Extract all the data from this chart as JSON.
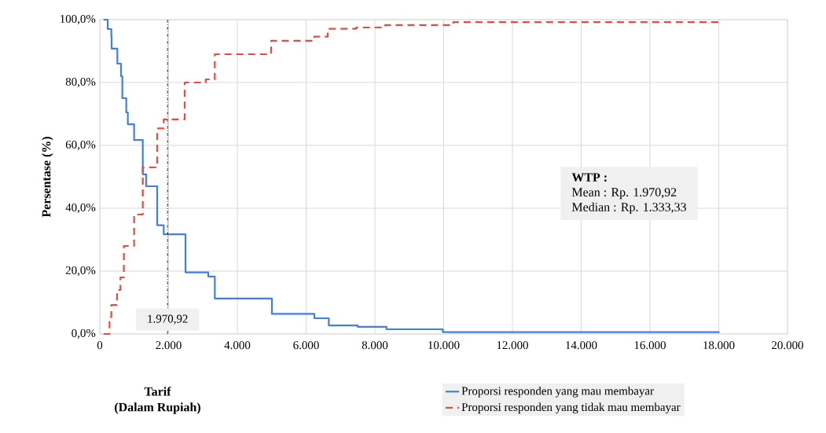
{
  "chart_data": {
    "type": "step",
    "xlabel": "Tarif (Dalam Rupiah)",
    "ylabel": "Persentase (%)",
    "xlim": [
      0,
      20000
    ],
    "ylim": [
      0,
      100
    ],
    "xticks": [
      {
        "value": 0,
        "label": "0"
      },
      {
        "value": 2000,
        "label": "2.000"
      },
      {
        "value": 4000,
        "label": "4.000"
      },
      {
        "value": 6000,
        "label": "6.000"
      },
      {
        "value": 8000,
        "label": "8.000"
      },
      {
        "value": 10000,
        "label": "10.000"
      },
      {
        "value": 12000,
        "label": "12.000"
      },
      {
        "value": 14000,
        "label": "14.000"
      },
      {
        "value": 16000,
        "label": "16.000"
      },
      {
        "value": 18000,
        "label": "18.000"
      },
      {
        "value": 20000,
        "label": "20.000"
      }
    ],
    "yticks": [
      {
        "value": 0,
        "label": "0,0%"
      },
      {
        "value": 20,
        "label": "20,0%"
      },
      {
        "value": 40,
        "label": "40,0%"
      },
      {
        "value": 60,
        "label": "60,0%"
      },
      {
        "value": 80,
        "label": "80,0%"
      },
      {
        "value": 100,
        "label": "100,0%"
      }
    ],
    "grid": true,
    "legend": "bottom right",
    "series": [
      {
        "name": "Proporsi responden yang mau membayar",
        "color": "#3f7fe8",
        "line_style": "solid",
        "x": [
          107,
          230,
          335,
          343,
          510,
          617,
          655,
          770,
          815,
          998,
          1250,
          1349,
          1669,
          1859,
          2492,
          3155,
          3345,
          5006,
          6240,
          6660,
          7500,
          8337,
          9975,
          18000
        ],
        "values": [
          100,
          97,
          94.5,
          90.8,
          86,
          82,
          75,
          70.5,
          66.7,
          61.7,
          50.8,
          47,
          34.6,
          31.7,
          19.6,
          18.3,
          11.3,
          6.4,
          5,
          2.7,
          2.3,
          1.5,
          0.6,
          0.3
        ]
      },
      {
        "name": "Proporsi responden yang tidak mau membayar",
        "color": "#f0483c",
        "line_style": "dashed",
        "x": [
          107,
          282,
          335,
          500,
          600,
          700,
          998,
          1250,
          1669,
          1859,
          2469,
          3080,
          3345,
          4983,
          6240,
          6630,
          7455,
          8300,
          10280,
          18000
        ],
        "values": [
          0,
          5.4,
          9.2,
          14,
          18,
          28,
          38,
          53,
          65.4,
          68.3,
          80,
          81,
          89,
          93.3,
          94.6,
          97.1,
          97.5,
          98.3,
          99.2,
          99.8
        ]
      }
    ],
    "ref_lines": [
      {
        "axis": "x",
        "value": 1970.92,
        "label": "1.970,92",
        "color": "#000000"
      }
    ],
    "annotations": [
      "WTP :",
      "Mean : Rp. 1.970,92",
      "Median : Rp. 1.333,33"
    ]
  }
}
